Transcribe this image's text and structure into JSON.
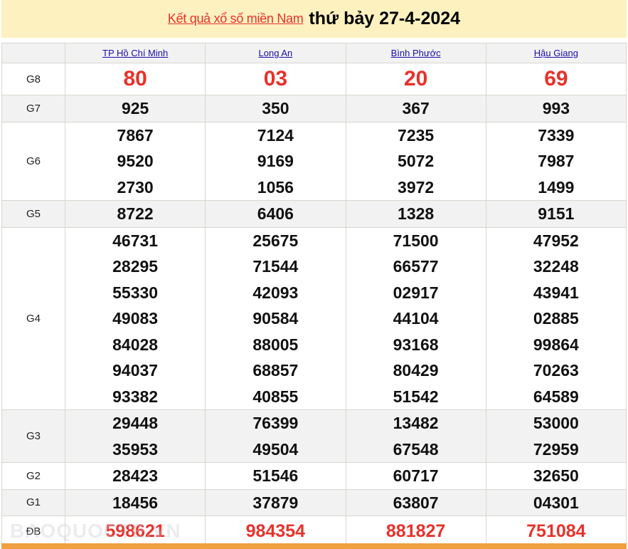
{
  "header": {
    "link": "Kết quả xổ số miền Nam",
    "date": "thứ bảy 27-4-2024"
  },
  "provinces": [
    "TP Hồ Chí Minh",
    "Long An",
    "Bình Phước",
    "Hậu Giang"
  ],
  "rows": [
    {
      "label": "G8",
      "style": "big",
      "values": [
        [
          "80"
        ],
        [
          "03"
        ],
        [
          "20"
        ],
        [
          "69"
        ]
      ]
    },
    {
      "label": "G7",
      "style": "alt",
      "values": [
        [
          "925"
        ],
        [
          "350"
        ],
        [
          "367"
        ],
        [
          "993"
        ]
      ]
    },
    {
      "label": "G6",
      "style": "",
      "values": [
        [
          "7867",
          "9520",
          "2730"
        ],
        [
          "7124",
          "9169",
          "1056"
        ],
        [
          "7235",
          "5072",
          "3972"
        ],
        [
          "7339",
          "7987",
          "1499"
        ]
      ]
    },
    {
      "label": "G5",
      "style": "alt",
      "values": [
        [
          "8722"
        ],
        [
          "6406"
        ],
        [
          "1328"
        ],
        [
          "9151"
        ]
      ]
    },
    {
      "label": "G4",
      "style": "",
      "values": [
        [
          "46731",
          "28295",
          "55330",
          "49083",
          "84028",
          "94037",
          "93382"
        ],
        [
          "25675",
          "71544",
          "42093",
          "90584",
          "88005",
          "68857",
          "40855"
        ],
        [
          "71500",
          "66577",
          "02917",
          "44104",
          "93168",
          "80429",
          "51542"
        ],
        [
          "47952",
          "32248",
          "43941",
          "02885",
          "99864",
          "70263",
          "64589"
        ]
      ]
    },
    {
      "label": "G3",
      "style": "alt",
      "values": [
        [
          "29448",
          "35953"
        ],
        [
          "76399",
          "49504"
        ],
        [
          "13482",
          "67548"
        ],
        [
          "53000",
          "72959"
        ]
      ]
    },
    {
      "label": "G2",
      "style": "",
      "values": [
        [
          "28423"
        ],
        [
          "51546"
        ],
        [
          "60717"
        ],
        [
          "32650"
        ]
      ]
    },
    {
      "label": "G1",
      "style": "alt",
      "values": [
        [
          "18456"
        ],
        [
          "37879"
        ],
        [
          "63807"
        ],
        [
          "04301"
        ]
      ]
    },
    {
      "label": "ĐB",
      "style": "db",
      "values": [
        [
          "598621"
        ],
        [
          "984354"
        ],
        [
          "881827"
        ],
        [
          "751084"
        ]
      ]
    }
  ],
  "watermark": "BAOQUOCTE.VN",
  "colors": {
    "header_bg": "#fdf1bf",
    "prize_red": "#e8312b",
    "link_blue": "#1a0dab",
    "footer_bar": "#f0a040"
  }
}
